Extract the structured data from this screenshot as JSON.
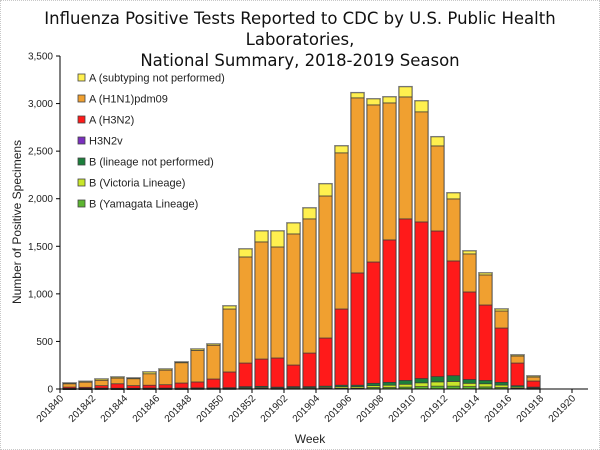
{
  "chart_data": {
    "type": "bar",
    "stacked": true,
    "title": "Influenza Positive Tests Reported to CDC by U.S. Public Health Laboratories,",
    "subtitle": "National Summary, 2018-2019 Season",
    "xlabel": "Week",
    "ylabel": "Number of Positive Specimens",
    "ylim": [
      0,
      3500
    ],
    "yticks": [
      0,
      500,
      1000,
      1500,
      2000,
      2500,
      3000,
      3500
    ],
    "ytick_labels": [
      "0",
      "500",
      "1,000",
      "1,500",
      "2,000",
      "2,500",
      "3,000",
      "3,500"
    ],
    "grid": false,
    "legend_position": "top-left",
    "categories": [
      "201840",
      "201841",
      "201842",
      "201843",
      "201844",
      "201845",
      "201846",
      "201847",
      "201848",
      "201849",
      "201850",
      "201851",
      "201852",
      "201901",
      "201902",
      "201903",
      "201904",
      "201905",
      "201906",
      "201907",
      "201908",
      "201909",
      "201910",
      "201911",
      "201912",
      "201913",
      "201914",
      "201915",
      "201916",
      "201917",
      "201918",
      "201919",
      "201920"
    ],
    "xtick_labels": [
      "201840",
      "201842",
      "201844",
      "201846",
      "201848",
      "201850",
      "201852",
      "201902",
      "201904",
      "201906",
      "201908",
      "201910",
      "201912",
      "201914",
      "201916",
      "201918",
      "201920"
    ],
    "series": [
      {
        "name": "B (Yamagata Lineage)",
        "color": "#5cb531",
        "values": [
          2,
          2,
          3,
          2,
          2,
          3,
          3,
          3,
          4,
          4,
          4,
          6,
          7,
          5,
          6,
          6,
          8,
          10,
          10,
          15,
          15,
          20,
          25,
          30,
          30,
          25,
          22,
          15,
          8,
          5,
          0,
          0,
          0
        ]
      },
      {
        "name": "B (Victoria Lineage)",
        "color": "#c8e62a",
        "values": [
          2,
          2,
          3,
          3,
          3,
          3,
          3,
          3,
          4,
          4,
          5,
          9,
          10,
          7,
          9,
          9,
          10,
          15,
          15,
          20,
          25,
          30,
          40,
          45,
          50,
          35,
          33,
          27,
          12,
          7,
          0,
          0,
          0
        ]
      },
      {
        "name": "B (lineage not performed)",
        "color": "#1b7f3b",
        "values": [
          2,
          2,
          4,
          3,
          3,
          4,
          4,
          4,
          4,
          4,
          5,
          10,
          11,
          8,
          10,
          10,
          12,
          15,
          15,
          25,
          30,
          40,
          45,
          55,
          60,
          40,
          35,
          28,
          15,
          8,
          0,
          0,
          0
        ]
      },
      {
        "name": "H3N2v",
        "color": "#7b2fbf",
        "values": [
          0,
          0,
          0,
          0,
          0,
          0,
          0,
          0,
          0,
          0,
          0,
          0,
          0,
          0,
          0,
          0,
          0,
          0,
          0,
          0,
          0,
          0,
          0,
          0,
          0,
          0,
          0,
          0,
          0,
          0,
          0,
          0,
          0
        ]
      },
      {
        "name": "A (H3N2)",
        "color": "#ff1a1a",
        "values": [
          14,
          12,
          25,
          47,
          27,
          30,
          35,
          53,
          62,
          93,
          165,
          248,
          287,
          306,
          227,
          353,
          506,
          801,
          1180,
          1275,
          1497,
          1698,
          1646,
          1531,
          1206,
          920,
          793,
          571,
          238,
          64,
          0,
          0,
          0
        ]
      },
      {
        "name": "A (H1N1)pdm09",
        "color": "#f0a030",
        "values": [
          35,
          54,
          57,
          60,
          73,
          120,
          153,
          213,
          331,
          355,
          662,
          1115,
          1231,
          1167,
          1378,
          1410,
          1493,
          1641,
          1840,
          1651,
          1440,
          1282,
          1157,
          894,
          652,
          400,
          316,
          179,
          74,
          42,
          0,
          0,
          0
        ]
      },
      {
        "name": "A (subtyping not performed)",
        "color": "#fff04f",
        "values": [
          8,
          8,
          13,
          11,
          8,
          19,
          12,
          8,
          15,
          13,
          32,
          84,
          115,
          168,
          115,
          115,
          127,
          73,
          53,
          63,
          63,
          106,
          115,
          95,
          63,
          31,
          21,
          21,
          11,
          11,
          0,
          0,
          0
        ]
      }
    ],
    "legend_order": [
      "A (subtyping not performed)",
      "A (H1N1)pdm09",
      "A (H3N2)",
      "H3N2v",
      "B (lineage not performed)",
      "B (Victoria Lineage)",
      "B (Yamagata Lineage)"
    ]
  }
}
